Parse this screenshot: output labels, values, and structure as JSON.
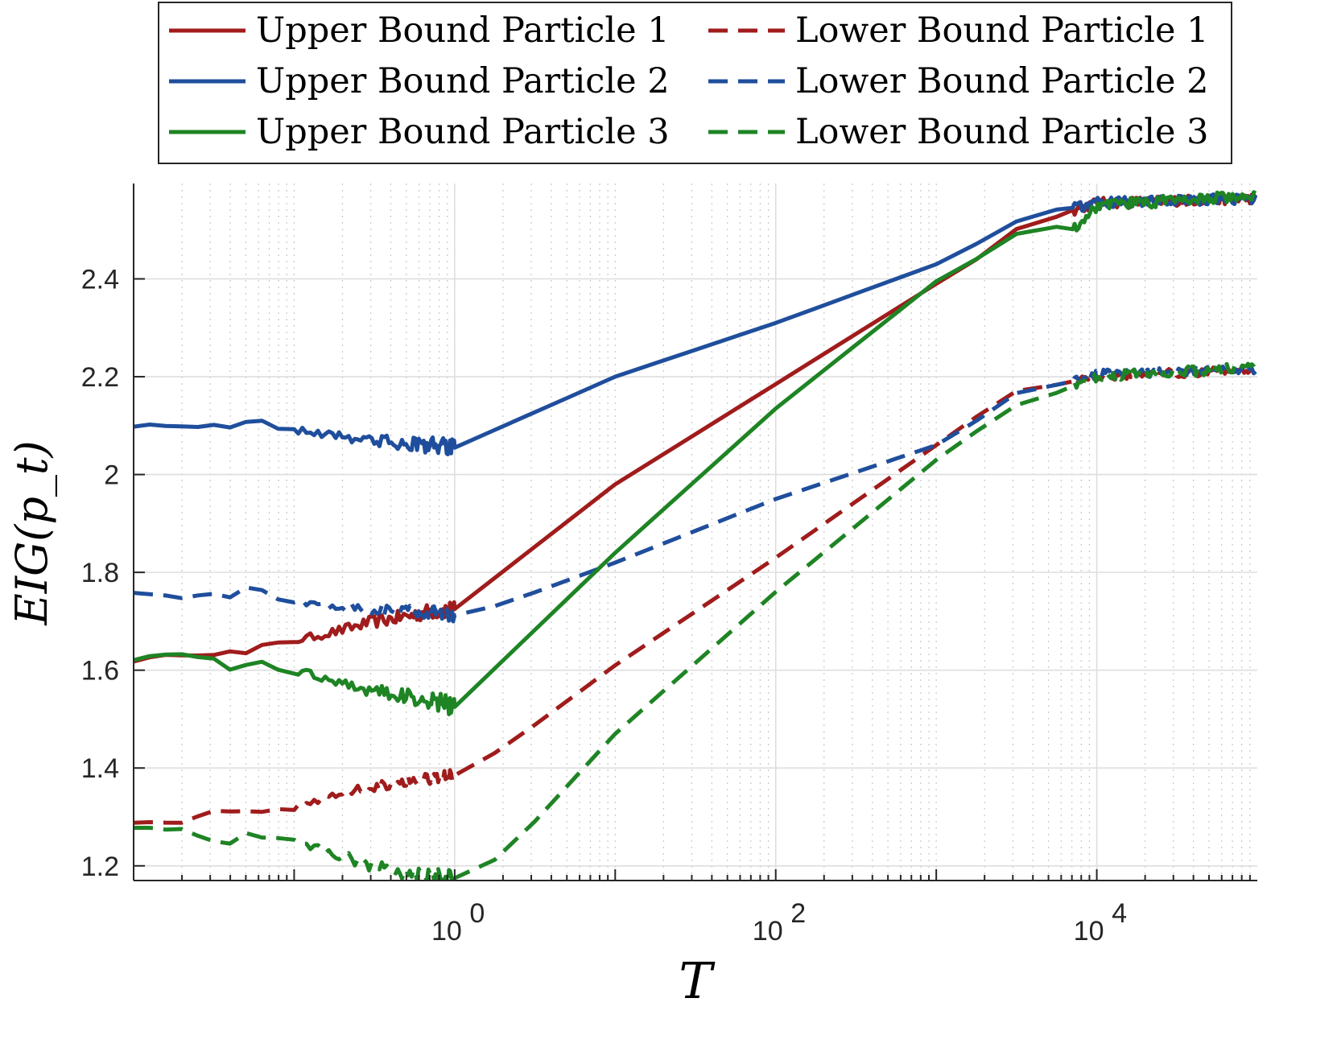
{
  "chart_data": {
    "type": "line",
    "title": "",
    "xlabel": "T",
    "ylabel": "EIG(p_t)",
    "xscale": "log",
    "xlim": [
      0.01,
      100000
    ],
    "ylim": [
      1.17,
      2.595
    ],
    "grid": true,
    "legend_position": "top",
    "x_ticks": [
      {
        "value": 1,
        "base": "10",
        "exp": "0"
      },
      {
        "value": 100,
        "base": "10",
        "exp": "2"
      },
      {
        "value": 10000,
        "base": "10",
        "exp": "4"
      }
    ],
    "y_ticks": [
      {
        "value": 1.2,
        "label": "1.2"
      },
      {
        "value": 1.4,
        "label": "1.4"
      },
      {
        "value": 1.6,
        "label": "1.6"
      },
      {
        "value": 1.8,
        "label": "1.8"
      },
      {
        "value": 2.0,
        "label": "2"
      },
      {
        "value": 2.2,
        "label": "2.2"
      },
      {
        "value": 2.4,
        "label": "2.4"
      }
    ],
    "series": [
      {
        "name": "Upper Bound Particle 1",
        "color": "#a01c1c",
        "style": "solid",
        "noise": 0.012,
        "points": [
          [
            0.01,
            1.62
          ],
          [
            0.02,
            1.633
          ],
          [
            0.03,
            1.633
          ],
          [
            0.04,
            1.637
          ],
          [
            0.05,
            1.634
          ],
          [
            0.06,
            1.648
          ],
          [
            0.08,
            1.655
          ],
          [
            0.1,
            1.66
          ],
          [
            0.2,
            1.682
          ],
          [
            0.3,
            1.698
          ],
          [
            0.5,
            1.71
          ],
          [
            0.7,
            1.72
          ],
          [
            1,
            1.725
          ],
          [
            10,
            1.98
          ],
          [
            100,
            2.185
          ],
          [
            1000,
            2.39
          ],
          [
            2000,
            2.45
          ],
          [
            3000,
            2.5
          ],
          [
            5000,
            2.52
          ],
          [
            7000,
            2.54
          ],
          [
            10000,
            2.555
          ],
          [
            100000,
            2.565
          ]
        ]
      },
      {
        "name": "Lower Bound Particle 1",
        "color": "#a01c1c",
        "style": "dashed",
        "noise": 0.01,
        "points": [
          [
            0.01,
            1.29
          ],
          [
            0.02,
            1.29
          ],
          [
            0.03,
            1.31
          ],
          [
            0.04,
            1.31
          ],
          [
            0.05,
            1.31
          ],
          [
            0.07,
            1.31
          ],
          [
            0.1,
            1.32
          ],
          [
            0.2,
            1.35
          ],
          [
            0.3,
            1.36
          ],
          [
            0.5,
            1.375
          ],
          [
            0.7,
            1.38
          ],
          [
            1,
            1.385
          ],
          [
            2,
            1.44
          ],
          [
            10,
            1.61
          ],
          [
            100,
            1.83
          ],
          [
            1000,
            2.06
          ],
          [
            2000,
            2.13
          ],
          [
            3000,
            2.17
          ],
          [
            5000,
            2.18
          ],
          [
            7000,
            2.19
          ],
          [
            10000,
            2.2
          ],
          [
            100000,
            2.215
          ]
        ]
      },
      {
        "name": "Upper Bound Particle 2",
        "color": "#1f4e9c",
        "style": "solid",
        "noise": 0.012,
        "points": [
          [
            0.01,
            2.1
          ],
          [
            0.02,
            2.1
          ],
          [
            0.03,
            2.1
          ],
          [
            0.04,
            2.095
          ],
          [
            0.05,
            2.11
          ],
          [
            0.06,
            2.115
          ],
          [
            0.08,
            2.095
          ],
          [
            0.1,
            2.09
          ],
          [
            0.2,
            2.08
          ],
          [
            0.3,
            2.07
          ],
          [
            0.5,
            2.063
          ],
          [
            0.7,
            2.06
          ],
          [
            1,
            2.055
          ],
          [
            10,
            2.2
          ],
          [
            100,
            2.31
          ],
          [
            1000,
            2.43
          ],
          [
            2000,
            2.48
          ],
          [
            3000,
            2.515
          ],
          [
            5000,
            2.54
          ],
          [
            7000,
            2.545
          ],
          [
            10000,
            2.555
          ],
          [
            100000,
            2.565
          ]
        ]
      },
      {
        "name": "Lower Bound Particle 2",
        "color": "#1f4e9c",
        "style": "dashed",
        "noise": 0.01,
        "points": [
          [
            0.01,
            1.76
          ],
          [
            0.02,
            1.748
          ],
          [
            0.03,
            1.756
          ],
          [
            0.04,
            1.748
          ],
          [
            0.05,
            1.77
          ],
          [
            0.06,
            1.765
          ],
          [
            0.08,
            1.745
          ],
          [
            0.1,
            1.74
          ],
          [
            0.2,
            1.73
          ],
          [
            0.3,
            1.725
          ],
          [
            0.5,
            1.72
          ],
          [
            0.7,
            1.718
          ],
          [
            1,
            1.712
          ],
          [
            2,
            1.735
          ],
          [
            10,
            1.82
          ],
          [
            100,
            1.95
          ],
          [
            1000,
            2.06
          ],
          [
            2000,
            2.12
          ],
          [
            3000,
            2.165
          ],
          [
            5000,
            2.18
          ],
          [
            7000,
            2.19
          ],
          [
            10000,
            2.205
          ],
          [
            100000,
            2.215
          ]
        ]
      },
      {
        "name": "Upper Bound Particle 3",
        "color": "#1e8424",
        "style": "solid",
        "noise": 0.013,
        "points": [
          [
            0.01,
            1.623
          ],
          [
            0.02,
            1.633
          ],
          [
            0.03,
            1.627
          ],
          [
            0.04,
            1.6
          ],
          [
            0.05,
            1.61
          ],
          [
            0.06,
            1.62
          ],
          [
            0.08,
            1.6
          ],
          [
            0.1,
            1.6
          ],
          [
            0.2,
            1.575
          ],
          [
            0.3,
            1.56
          ],
          [
            0.5,
            1.545
          ],
          [
            0.7,
            1.54
          ],
          [
            1,
            1.525
          ],
          [
            10,
            1.84
          ],
          [
            100,
            2.135
          ],
          [
            1000,
            2.395
          ],
          [
            2000,
            2.45
          ],
          [
            3000,
            2.49
          ],
          [
            5000,
            2.51
          ],
          [
            7000,
            2.5
          ],
          [
            10000,
            2.55
          ],
          [
            100000,
            2.57
          ]
        ]
      },
      {
        "name": "Lower Bound Particle 3",
        "color": "#1e8424",
        "style": "dashed",
        "noise": 0.012,
        "points": [
          [
            0.01,
            1.28
          ],
          [
            0.02,
            1.275
          ],
          [
            0.03,
            1.25
          ],
          [
            0.04,
            1.245
          ],
          [
            0.05,
            1.265
          ],
          [
            0.06,
            1.26
          ],
          [
            0.08,
            1.255
          ],
          [
            0.1,
            1.25
          ],
          [
            0.2,
            1.22
          ],
          [
            0.3,
            1.2
          ],
          [
            0.5,
            1.185
          ],
          [
            0.7,
            1.178
          ],
          [
            1,
            1.175
          ],
          [
            2,
            1.22
          ],
          [
            10,
            1.47
          ],
          [
            100,
            1.76
          ],
          [
            1000,
            2.03
          ],
          [
            2000,
            2.1
          ],
          [
            3000,
            2.14
          ],
          [
            5000,
            2.16
          ],
          [
            7000,
            2.18
          ],
          [
            10000,
            2.2
          ],
          [
            100000,
            2.22
          ]
        ]
      }
    ]
  }
}
